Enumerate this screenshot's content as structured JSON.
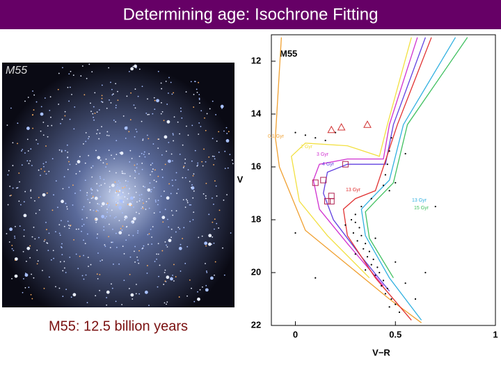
{
  "slide": {
    "title": "Determining age: Isochrone Fitting",
    "photo_label": "M55",
    "caption": "M55: 12.5 billion years"
  },
  "chart_data": {
    "type": "scatter",
    "title": "M55",
    "xlabel": "V−R",
    "ylabel": "V",
    "xlim": [
      -0.12,
      1
    ],
    "ylim": [
      22,
      11
    ],
    "xticks": [
      0,
      0.5,
      1
    ],
    "yticks": [
      12,
      14,
      16,
      18,
      20,
      22
    ],
    "series": [
      {
        "name": "0.1 Gyr",
        "color": "#f0a030",
        "x": [
          -0.07,
          -0.1,
          -0.08,
          0.05,
          0.26,
          0.47,
          0.63
        ],
        "y": [
          11.1,
          14.9,
          16,
          18.4,
          19.7,
          21,
          21.9
        ]
      },
      {
        "name": "2 Gyr",
        "color": "#f2e040",
        "x": [
          0.58,
          0.46,
          0.42,
          0.26,
          0.05,
          -0.02,
          0.02,
          0.16,
          0.37
        ],
        "y": [
          11.1,
          14.4,
          15.6,
          15.2,
          15.1,
          15.6,
          17.3,
          18.6,
          20.2
        ]
      },
      {
        "name": "3 Gyr",
        "color": "#d030d0",
        "x": [
          0.61,
          0.47,
          0.44,
          0.26,
          0.12,
          0.09,
          0.12,
          0.26,
          0.44
        ],
        "y": [
          11.1,
          14.4,
          15.7,
          15.7,
          15.9,
          16.5,
          17.6,
          18.9,
          20.5
        ]
      },
      {
        "name": "4 Gyr",
        "color": "#6040e0",
        "x": [
          0.65,
          0.49,
          0.45,
          0.26,
          0.16,
          0.14,
          0.19,
          0.33,
          0.47
        ],
        "y": [
          11.1,
          14.4,
          15.9,
          15.9,
          16.2,
          17,
          18,
          19.4,
          20.7
        ]
      },
      {
        "name": "13 Gyr",
        "color": "#e03030",
        "x": [
          0.68,
          0.51,
          0.44,
          0.4,
          0.3,
          0.24,
          0.26,
          0.4,
          0.58
        ],
        "y": [
          11.1,
          14.4,
          16,
          16.9,
          17.2,
          17.6,
          18.6,
          20.2,
          21.8
        ]
      },
      {
        "name": "13 Gyr",
        "color": "#30b0e0",
        "x": [
          0.8,
          0.54,
          0.47,
          0.38,
          0.33,
          0.35,
          0.47,
          0.63
        ],
        "y": [
          11.1,
          14.4,
          16.5,
          17.2,
          17.6,
          18.6,
          20.2,
          21.8
        ]
      },
      {
        "name": "15 Gyr",
        "color": "#40c060",
        "x": [
          0.86,
          0.56,
          0.49,
          0.4,
          0.35,
          0.37,
          0.49
        ],
        "y": [
          11.1,
          14.4,
          16.6,
          17.3,
          17.7,
          18.7,
          20.2
        ]
      }
    ],
    "stars": {
      "x": [
        0.48,
        0.47,
        0.46,
        0.45,
        0.44,
        0.47,
        0.5,
        0.38,
        0.33,
        0.3,
        0.28,
        0.3,
        0.32,
        0.29,
        0.33,
        0.31,
        0.35,
        0.34,
        0.37,
        0.36,
        0.39,
        0.38,
        0.41,
        0.42,
        0.4,
        0.44,
        0.43,
        0.46,
        0.45,
        0.48,
        0.5,
        0.47,
        0.52,
        0.35,
        0.3,
        0.55,
        0.6,
        0.25,
        0.4,
        0.5,
        0.05,
        0.1,
        0.15,
        0,
        0.2,
        0,
        0.1,
        0.65,
        0.7,
        0.55
      ],
      "y": [
        14.9,
        15.4,
        15.9,
        16.3,
        16.7,
        16.9,
        16.6,
        17.2,
        17.5,
        17.8,
        18,
        18.1,
        18.3,
        18.5,
        18.6,
        18.8,
        18.9,
        19.1,
        19.2,
        19.4,
        19.5,
        19.7,
        19.8,
        20,
        20.1,
        20.3,
        20.5,
        20.6,
        20.8,
        21,
        21.2,
        21.3,
        21.5,
        19.9,
        19.3,
        20.4,
        21,
        18.2,
        18.7,
        19.6,
        14.8,
        14.9,
        15,
        14.7,
        14.7,
        18.5,
        20.2,
        20,
        17.5,
        15.5
      ]
    },
    "triangles": {
      "x": [
        0.18,
        0.23,
        0.36
      ],
      "y": [
        14.6,
        14.5,
        14.4
      ]
    },
    "squares": {
      "x": [
        0.25,
        0.14,
        0.1,
        0.18,
        0.16,
        0.18
      ],
      "y": [
        15.9,
        16.5,
        16.6,
        17.1,
        17.3,
        17.3
      ]
    }
  }
}
